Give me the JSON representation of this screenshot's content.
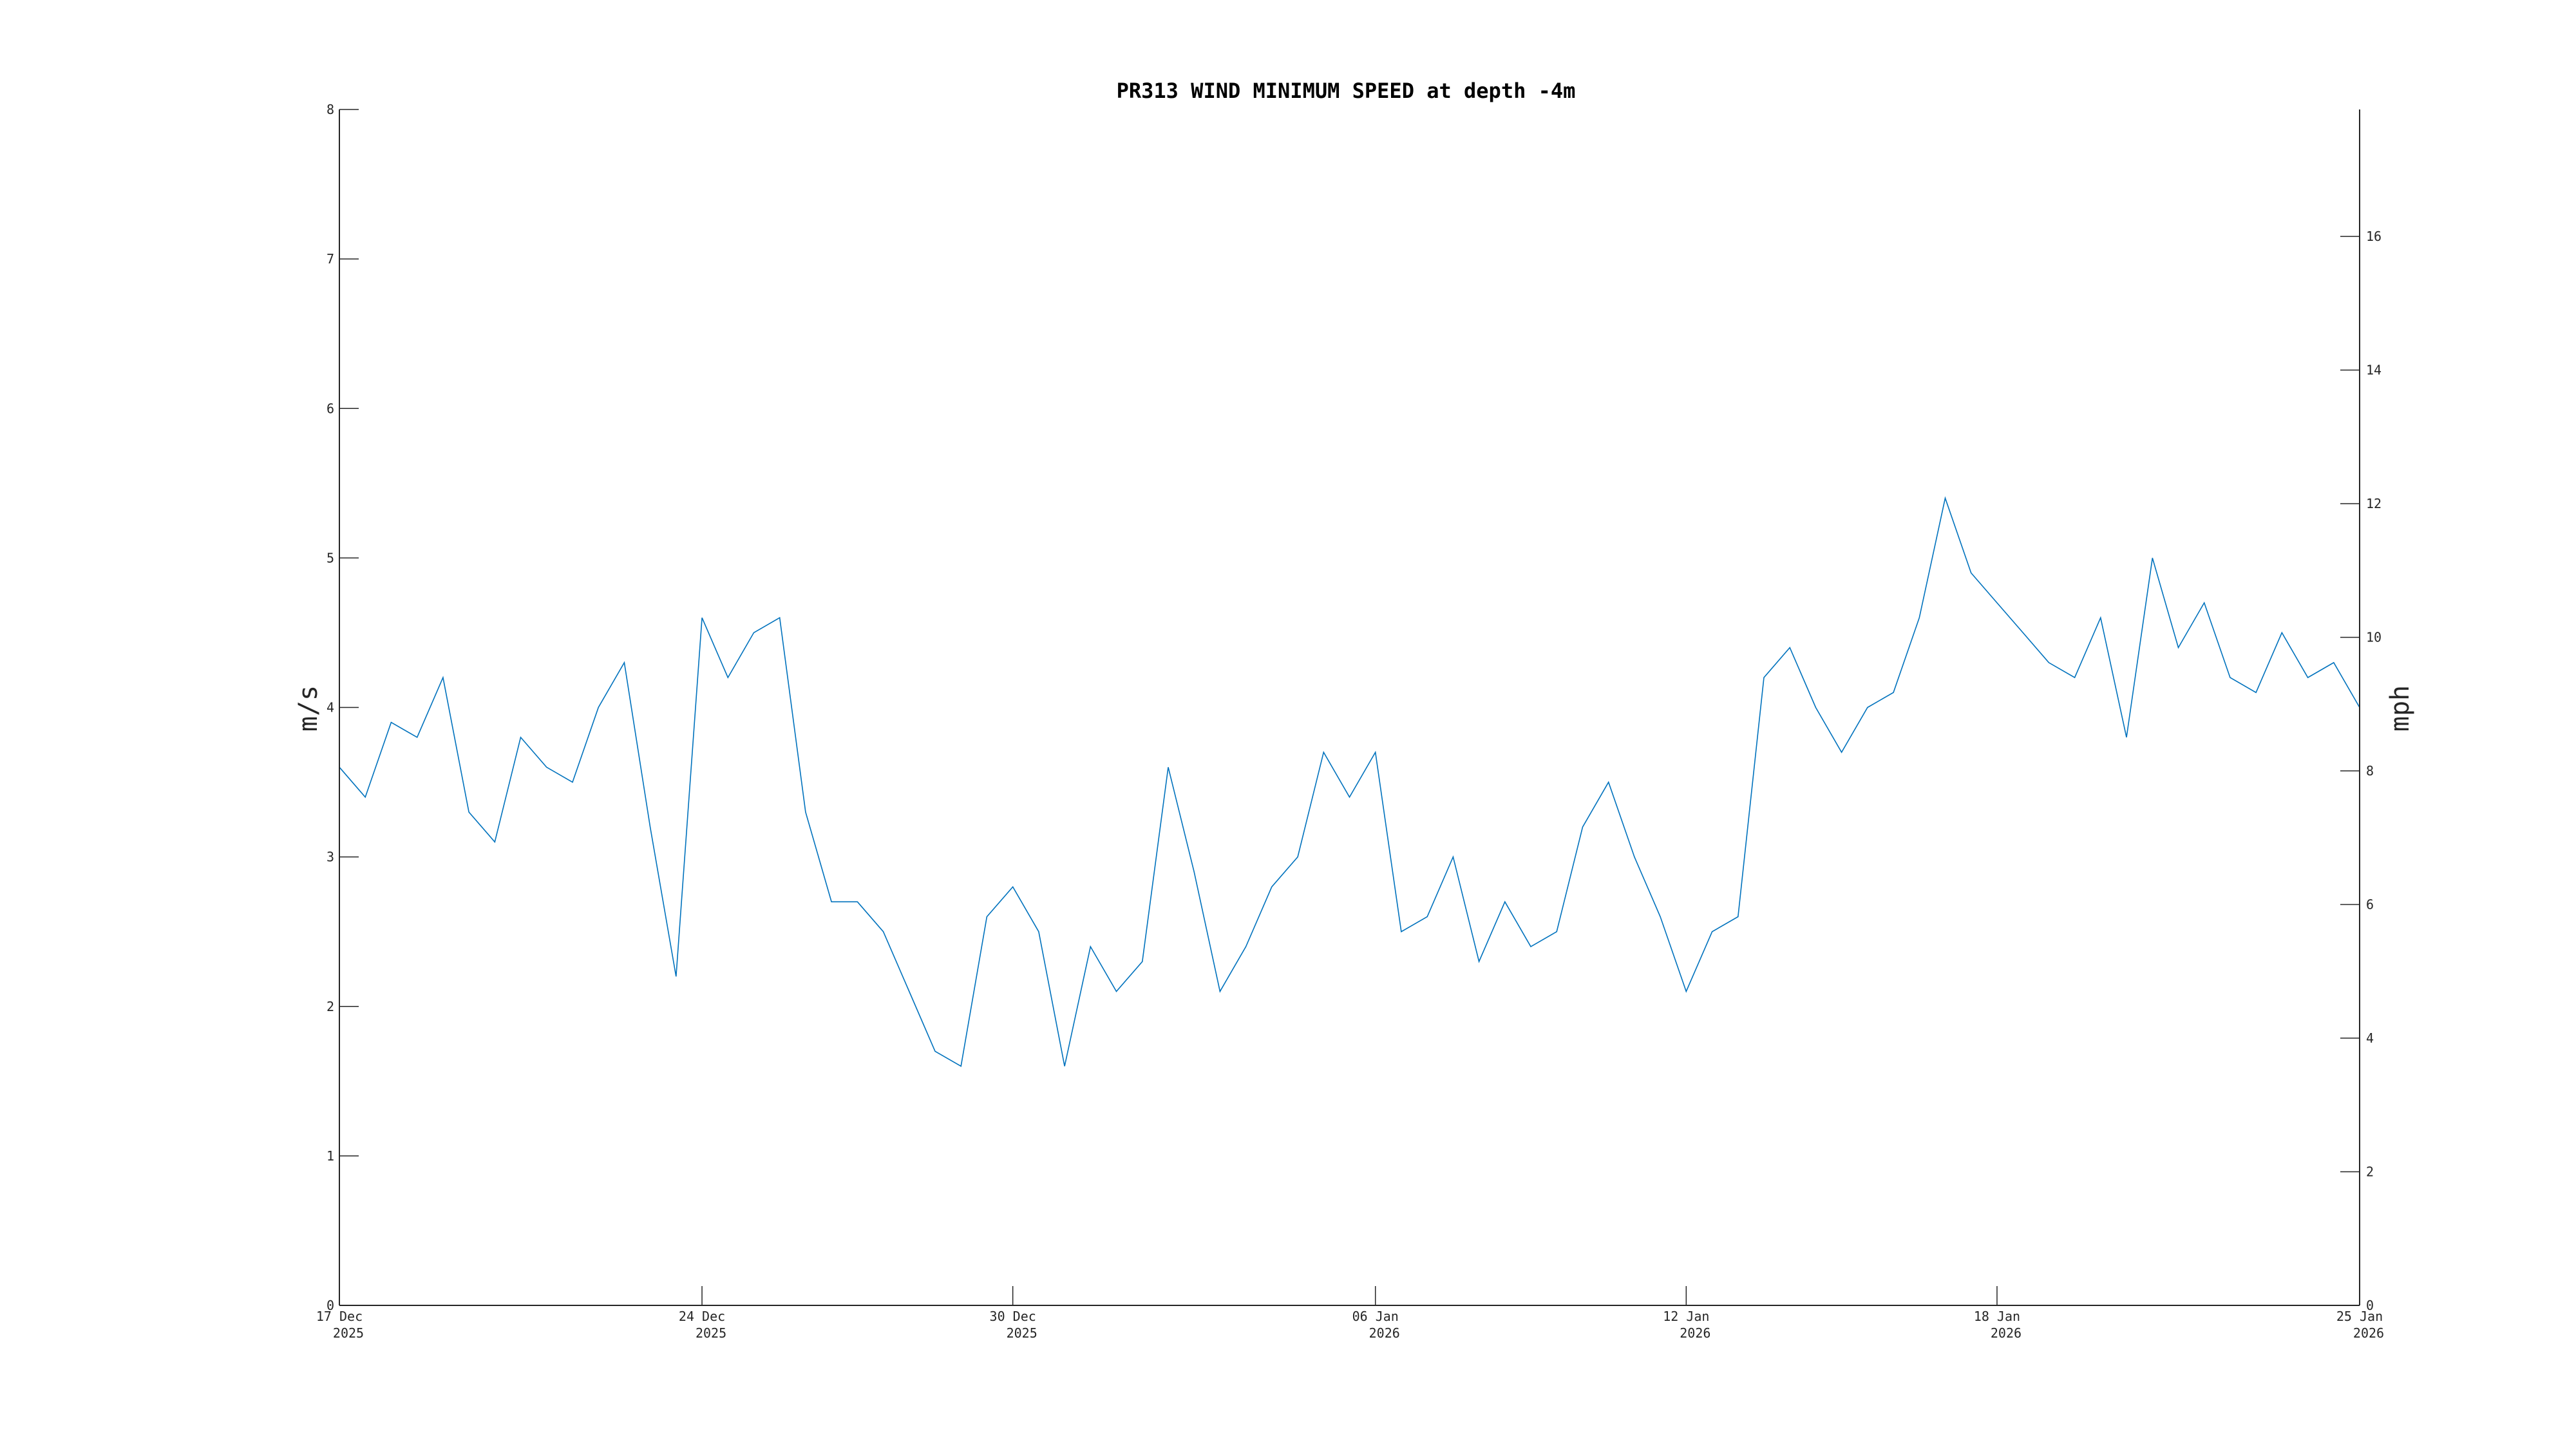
{
  "chart_data": {
    "type": "line",
    "title": "PR313 WIND MINIMUM SPEED at depth -4m",
    "ylabel": "m/s",
    "ylabel_right": "mph",
    "xlim": [
      "2025-12-17",
      "2026-01-25"
    ],
    "ylim": [
      0,
      8
    ],
    "ylim_right": [
      0,
      17.9
    ],
    "yticks": [
      0,
      1,
      2,
      3,
      4,
      5,
      6,
      7,
      8
    ],
    "yticks_right": [
      0,
      2,
      4,
      6,
      8,
      10,
      12,
      14,
      16
    ],
    "xticks": [
      {
        "date": "2025-12-17",
        "line1": "17 Dec",
        "line2": "2025"
      },
      {
        "date": "2025-12-24",
        "line1": "24 Dec",
        "line2": "2025"
      },
      {
        "date": "2025-12-30",
        "line1": "30 Dec",
        "line2": "2025"
      },
      {
        "date": "2026-01-06",
        "line1": "06 Jan",
        "line2": "2026"
      },
      {
        "date": "2026-01-12",
        "line1": "12 Jan",
        "line2": "2026"
      },
      {
        "date": "2026-01-18",
        "line1": "18 Jan",
        "line2": "2026"
      },
      {
        "date": "2026-01-25",
        "line1": "25 Jan",
        "line2": "2026"
      }
    ],
    "grid": false,
    "series": [
      {
        "color": "#0072bd",
        "x": [
          "2025-12-17",
          "2025-12-17T12:00",
          "2025-12-18",
          "2025-12-18T12:00",
          "2025-12-19",
          "2025-12-19T12:00",
          "2025-12-20",
          "2025-12-20T12:00",
          "2025-12-21",
          "2025-12-21T12:00",
          "2025-12-22",
          "2025-12-22T12:00",
          "2025-12-23",
          "2025-12-23T12:00",
          "2025-12-24",
          "2025-12-24T12:00",
          "2025-12-25",
          "2025-12-25T12:00",
          "2025-12-26",
          "2025-12-26T12:00",
          "2025-12-27",
          "2025-12-27T12:00",
          "2025-12-28",
          "2025-12-28T12:00",
          "2025-12-29",
          "2025-12-29T12:00",
          "2025-12-30",
          "2025-12-30T12:00",
          "2025-12-31",
          "2025-12-31T12:00",
          "2026-01-01",
          "2026-01-01T12:00",
          "2026-01-02",
          "2026-01-02T12:00",
          "2026-01-03",
          "2026-01-03T12:00",
          "2026-01-04",
          "2026-01-04T12:00",
          "2026-01-05",
          "2026-01-05T12:00",
          "2026-01-06",
          "2026-01-06T12:00",
          "2026-01-07",
          "2026-01-07T12:00",
          "2026-01-08",
          "2026-01-08T12:00",
          "2026-01-09",
          "2026-01-09T12:00",
          "2026-01-10",
          "2026-01-10T12:00",
          "2026-01-11",
          "2026-01-11T12:00",
          "2026-01-12",
          "2026-01-12T12:00",
          "2026-01-13",
          "2026-01-13T12:00",
          "2026-01-14",
          "2026-01-14T12:00",
          "2026-01-15",
          "2026-01-15T12:00",
          "2026-01-16",
          "2026-01-16T12:00",
          "2026-01-17",
          "2026-01-17T12:00",
          "2026-01-18",
          "2026-01-18T12:00",
          "2026-01-19",
          "2026-01-19T12:00",
          "2026-01-20",
          "2026-01-20T12:00",
          "2026-01-21",
          "2026-01-21T12:00",
          "2026-01-22",
          "2026-01-22T12:00",
          "2026-01-23",
          "2026-01-23T12:00",
          "2026-01-24",
          "2026-01-24T12:00",
          "2026-01-25"
        ],
        "y": [
          3.6,
          3.4,
          3.9,
          3.8,
          4.2,
          3.3,
          3.1,
          3.8,
          3.6,
          3.5,
          4.0,
          4.3,
          3.2,
          2.2,
          4.6,
          4.2,
          4.5,
          4.6,
          3.3,
          2.7,
          2.7,
          2.5,
          2.1,
          1.7,
          1.6,
          2.6,
          2.8,
          2.5,
          1.6,
          2.4,
          2.1,
          2.3,
          3.6,
          2.9,
          2.1,
          2.4,
          2.8,
          3.0,
          3.7,
          3.4,
          3.7,
          2.5,
          2.6,
          3.0,
          2.3,
          2.7,
          2.4,
          2.5,
          3.2,
          3.5,
          3.0,
          2.6,
          2.1,
          2.5,
          2.6,
          4.2,
          4.4,
          4.0,
          3.7,
          4.0,
          4.1,
          4.6,
          5.4,
          4.9,
          4.7,
          4.5,
          4.3,
          4.2,
          4.6,
          3.8,
          5.0,
          4.4,
          4.7,
          4.2,
          4.1,
          4.5,
          4.2,
          4.3,
          4.0
        ]
      }
    ]
  }
}
